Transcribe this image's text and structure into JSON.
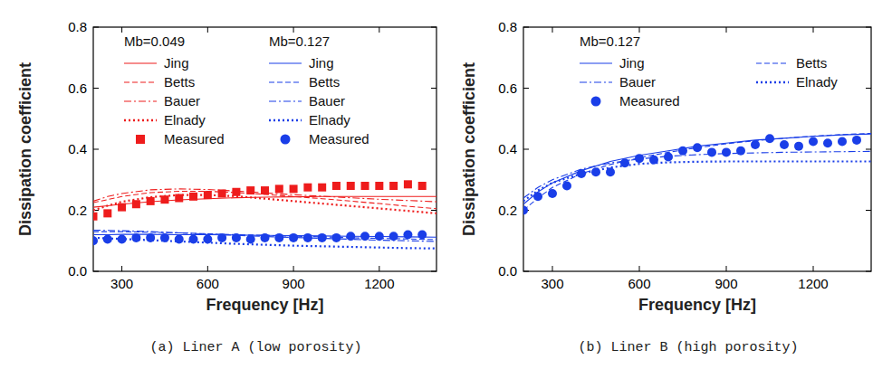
{
  "chart_data": [
    {
      "type": "line",
      "title": "(a) Liner A (low porosity)",
      "x_label": "Frequency [Hz]",
      "y_label": "Dissipation coefficient",
      "xlim": [
        200,
        1400
      ],
      "xticks": [
        300,
        600,
        900,
        1200
      ],
      "ylim": [
        0,
        0.8
      ],
      "yticks": [
        {
          "value": 0,
          "label": "0.0"
        },
        0.2,
        0.4,
        0.6,
        0.8
      ],
      "series": [
        {
          "name": "Jing",
          "group": "Mb=0.049",
          "color": "#ee1c1c",
          "type": "line",
          "line_style": "solid",
          "x": [
            200,
            250,
            300,
            400,
            500,
            600,
            700,
            800,
            900,
            1000,
            1100,
            1200,
            1300,
            1400
          ],
          "values": [
            0.21,
            0.215,
            0.22,
            0.228,
            0.234,
            0.238,
            0.241,
            0.243,
            0.244,
            0.245,
            0.245,
            0.245,
            0.245,
            0.245
          ]
        },
        {
          "name": "Betts",
          "group": "Mb=0.049",
          "color": "#ee1c1c",
          "type": "line",
          "line_style": "dashed",
          "x": [
            200,
            250,
            300,
            400,
            500,
            600,
            700,
            800,
            900,
            1000,
            1100,
            1200,
            1300,
            1400
          ],
          "values": [
            0.225,
            0.235,
            0.245,
            0.258,
            0.262,
            0.262,
            0.258,
            0.252,
            0.245,
            0.238,
            0.23,
            0.222,
            0.213,
            0.205
          ]
        },
        {
          "name": "Bauer",
          "group": "Mb=0.049",
          "color": "#ee1c1c",
          "type": "line",
          "line_style": "dashdot",
          "x": [
            200,
            250,
            300,
            400,
            500,
            600,
            700,
            800,
            900,
            1000,
            1100,
            1200,
            1300,
            1400
          ],
          "values": [
            0.23,
            0.245,
            0.255,
            0.267,
            0.27,
            0.268,
            0.263,
            0.257,
            0.251,
            0.246,
            0.241,
            0.236,
            0.232,
            0.228
          ]
        },
        {
          "name": "Elnady",
          "group": "Mb=0.049",
          "color": "#ee1c1c",
          "type": "line",
          "line_style": "dotted",
          "x": [
            200,
            250,
            300,
            400,
            500,
            600,
            700,
            800,
            900,
            1000,
            1100,
            1200,
            1300,
            1400
          ],
          "values": [
            0.2,
            0.215,
            0.228,
            0.243,
            0.25,
            0.25,
            0.246,
            0.238,
            0.23,
            0.222,
            0.214,
            0.206,
            0.198,
            0.19
          ]
        },
        {
          "name": "Measured",
          "group": "Mb=0.049",
          "color": "#ee1c1c",
          "type": "scatter",
          "marker": "square",
          "x": [
            200,
            250,
            300,
            350,
            400,
            450,
            500,
            550,
            600,
            650,
            700,
            750,
            800,
            850,
            900,
            950,
            1000,
            1050,
            1100,
            1150,
            1200,
            1250,
            1300,
            1350
          ],
          "values": [
            0.18,
            0.19,
            0.21,
            0.22,
            0.23,
            0.235,
            0.24,
            0.245,
            0.25,
            0.255,
            0.26,
            0.265,
            0.265,
            0.27,
            0.27,
            0.275,
            0.275,
            0.28,
            0.28,
            0.28,
            0.28,
            0.28,
            0.285,
            0.28
          ]
        },
        {
          "name": "Jing",
          "group": "Mb=0.127",
          "color": "#1a3ee8",
          "type": "line",
          "line_style": "solid",
          "x": [
            200,
            250,
            300,
            400,
            500,
            600,
            700,
            800,
            900,
            1000,
            1100,
            1200,
            1300,
            1400
          ],
          "values": [
            0.12,
            0.12,
            0.121,
            0.121,
            0.12,
            0.12,
            0.119,
            0.118,
            0.117,
            0.116,
            0.115,
            0.114,
            0.113,
            0.112
          ]
        },
        {
          "name": "Betts",
          "group": "Mb=0.127",
          "color": "#1a3ee8",
          "type": "line",
          "line_style": "dashed",
          "x": [
            200,
            250,
            300,
            400,
            500,
            600,
            700,
            800,
            900,
            1000,
            1100,
            1200,
            1300,
            1400
          ],
          "values": [
            0.13,
            0.13,
            0.13,
            0.128,
            0.126,
            0.123,
            0.12,
            0.118,
            0.115,
            0.113,
            0.11,
            0.108,
            0.106,
            0.104
          ]
        },
        {
          "name": "Bauer",
          "group": "Mb=0.127",
          "color": "#1a3ee8",
          "type": "line",
          "line_style": "dashdot",
          "x": [
            200,
            250,
            300,
            400,
            500,
            600,
            700,
            800,
            900,
            1000,
            1100,
            1200,
            1300,
            1400
          ],
          "values": [
            0.135,
            0.134,
            0.133,
            0.13,
            0.126,
            0.122,
            0.118,
            0.114,
            0.111,
            0.108,
            0.105,
            0.102,
            0.1,
            0.098
          ]
        },
        {
          "name": "Elnady",
          "group": "Mb=0.127",
          "color": "#1a3ee8",
          "type": "line",
          "line_style": "dotted",
          "x": [
            200,
            250,
            300,
            400,
            500,
            600,
            700,
            800,
            900,
            1000,
            1100,
            1200,
            1300,
            1400
          ],
          "values": [
            0.11,
            0.108,
            0.106,
            0.102,
            0.098,
            0.094,
            0.09,
            0.087,
            0.084,
            0.082,
            0.08,
            0.078,
            0.076,
            0.075
          ]
        },
        {
          "name": "Measured",
          "group": "Mb=0.127",
          "color": "#1a3ee8",
          "type": "scatter",
          "marker": "circle",
          "x": [
            200,
            250,
            300,
            350,
            400,
            450,
            500,
            550,
            600,
            650,
            700,
            750,
            800,
            850,
            900,
            950,
            1000,
            1050,
            1100,
            1150,
            1200,
            1250,
            1300,
            1350
          ],
          "values": [
            0.1,
            0.105,
            0.105,
            0.11,
            0.11,
            0.11,
            0.105,
            0.105,
            0.105,
            0.11,
            0.11,
            0.105,
            0.11,
            0.11,
            0.11,
            0.11,
            0.11,
            0.11,
            0.115,
            0.115,
            0.115,
            0.115,
            0.12,
            0.12
          ]
        }
      ]
    },
    {
      "type": "line",
      "title": "(b) Liner B (high porosity)",
      "x_label": "Frequency [Hz]",
      "y_label": "Dissipation coefficient",
      "xlim": [
        200,
        1400
      ],
      "xticks": [
        300,
        600,
        900,
        1200
      ],
      "ylim": [
        0,
        0.8
      ],
      "yticks": [
        {
          "value": 0,
          "label": "0.0"
        },
        0.2,
        0.4,
        0.6,
        0.8
      ],
      "series": [
        {
          "name": "Jing",
          "group": "Mb=0.127",
          "color": "#1a3ee8",
          "type": "line",
          "line_style": "solid",
          "x": [
            200,
            250,
            300,
            400,
            500,
            600,
            700,
            800,
            900,
            1000,
            1100,
            1200,
            1300,
            1400
          ],
          "values": [
            0.22,
            0.26,
            0.29,
            0.33,
            0.36,
            0.38,
            0.395,
            0.41,
            0.42,
            0.43,
            0.436,
            0.442,
            0.447,
            0.45
          ]
        },
        {
          "name": "Betts",
          "group": "Mb=0.127",
          "color": "#1a3ee8",
          "type": "line",
          "line_style": "dashed",
          "x": [
            200,
            250,
            300,
            400,
            500,
            600,
            700,
            800,
            900,
            1000,
            1100,
            1200,
            1300,
            1400
          ],
          "values": [
            0.2,
            0.24,
            0.275,
            0.32,
            0.35,
            0.372,
            0.39,
            0.405,
            0.418,
            0.428,
            0.436,
            0.443,
            0.448,
            0.452
          ]
        },
        {
          "name": "Bauer",
          "group": "Mb=0.127",
          "color": "#1a3ee8",
          "type": "line",
          "line_style": "dashdot",
          "x": [
            200,
            250,
            300,
            400,
            500,
            600,
            700,
            800,
            900,
            1000,
            1100,
            1200,
            1300,
            1400
          ],
          "values": [
            0.24,
            0.275,
            0.3,
            0.335,
            0.355,
            0.368,
            0.377,
            0.382,
            0.386,
            0.388,
            0.39,
            0.391,
            0.392,
            0.393
          ]
        },
        {
          "name": "Elnady",
          "group": "Mb=0.127",
          "color": "#1a3ee8",
          "type": "line",
          "line_style": "dotted",
          "x": [
            200,
            250,
            300,
            400,
            500,
            600,
            700,
            800,
            900,
            1000,
            1100,
            1200,
            1300,
            1400
          ],
          "values": [
            0.23,
            0.265,
            0.29,
            0.32,
            0.34,
            0.352,
            0.357,
            0.359,
            0.36,
            0.36,
            0.36,
            0.36,
            0.36,
            0.36
          ]
        },
        {
          "name": "Measured",
          "group": "Mb=0.127",
          "color": "#1a3ee8",
          "type": "scatter",
          "marker": "circle",
          "x": [
            200,
            250,
            300,
            350,
            400,
            450,
            500,
            550,
            600,
            650,
            700,
            750,
            800,
            850,
            900,
            950,
            1000,
            1050,
            1100,
            1150,
            1200,
            1250,
            1300,
            1350
          ],
          "values": [
            0.2,
            0.245,
            0.255,
            0.28,
            0.32,
            0.325,
            0.325,
            0.355,
            0.37,
            0.365,
            0.375,
            0.395,
            0.405,
            0.39,
            0.39,
            0.395,
            0.415,
            0.435,
            0.415,
            0.41,
            0.425,
            0.42,
            0.425,
            0.43
          ]
        }
      ]
    }
  ]
}
